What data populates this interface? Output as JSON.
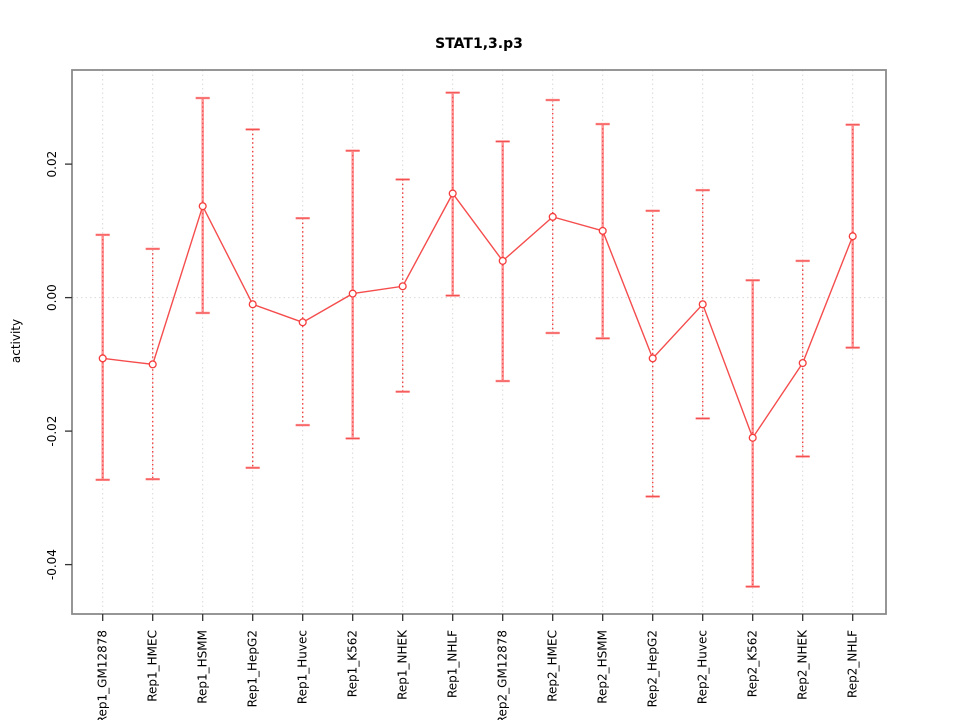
{
  "chart_data": {
    "type": "line",
    "title": "STAT1,3.p3",
    "xlabel": "",
    "ylabel": "activity",
    "categories": [
      "Rep1_GM12878",
      "Rep1_HMEC",
      "Rep1_HSMM",
      "Rep1_HepG2",
      "Rep1_Huvec",
      "Rep1_K562",
      "Rep1_NHEK",
      "Rep1_NHLF",
      "Rep2_GM12878",
      "Rep2_HMEC",
      "Rep2_HSMM",
      "Rep2_HepG2",
      "Rep2_Huvec",
      "Rep2_K562",
      "Rep2_NHEK",
      "Rep2_NHLF"
    ],
    "series": [
      {
        "name": "activity",
        "values": [
          -0.0091,
          -0.01,
          0.0137,
          -0.001,
          -0.0037,
          0.0006,
          0.0017,
          0.0156,
          0.0055,
          0.0121,
          0.01,
          -0.0091,
          -0.001,
          -0.021,
          -0.0098,
          0.0092
        ],
        "error_high": [
          0.0094,
          0.0073,
          0.0299,
          0.0252,
          0.0119,
          0.022,
          0.0177,
          0.0307,
          0.0234,
          0.0296,
          0.026,
          0.013,
          0.0161,
          0.0026,
          0.0055,
          0.0259
        ],
        "error_low": [
          -0.0273,
          -0.0272,
          -0.0023,
          -0.0255,
          -0.0191,
          -0.0211,
          -0.0141,
          0.0003,
          -0.0125,
          -0.0053,
          -0.0061,
          -0.0298,
          -0.0181,
          -0.0433,
          -0.0238,
          -0.0075
        ],
        "bar_style": [
          "solid",
          "dotted",
          "solid",
          "dotted",
          "dotted",
          "solid",
          "dotted",
          "solid",
          "solid",
          "dotted",
          "solid",
          "dotted",
          "dotted",
          "solid",
          "dotted",
          "solid"
        ]
      }
    ],
    "ylim": [
      -0.0474,
      0.0341
    ],
    "yticks": [
      -0.04,
      -0.02,
      0.0,
      0.02
    ],
    "ytick_labels": [
      "-0.04",
      "-0.02",
      "0.00",
      "0.02"
    ],
    "grid": "dotted vertical line at each category; dotted horizontal line at y=0",
    "legend": "none",
    "colors": {
      "line": "#f54d4d",
      "marker_stroke": "#f53d3d",
      "marker_fill": "#ffffff",
      "errorbar_solid": "#ff9898",
      "errorbar_dotted": "#f04040",
      "cap": "#ff9494",
      "grid": "#d9d9d9",
      "frame": "#8a8a8a",
      "tick": "#333333",
      "text": "#000000",
      "background": "#ffffff"
    }
  }
}
